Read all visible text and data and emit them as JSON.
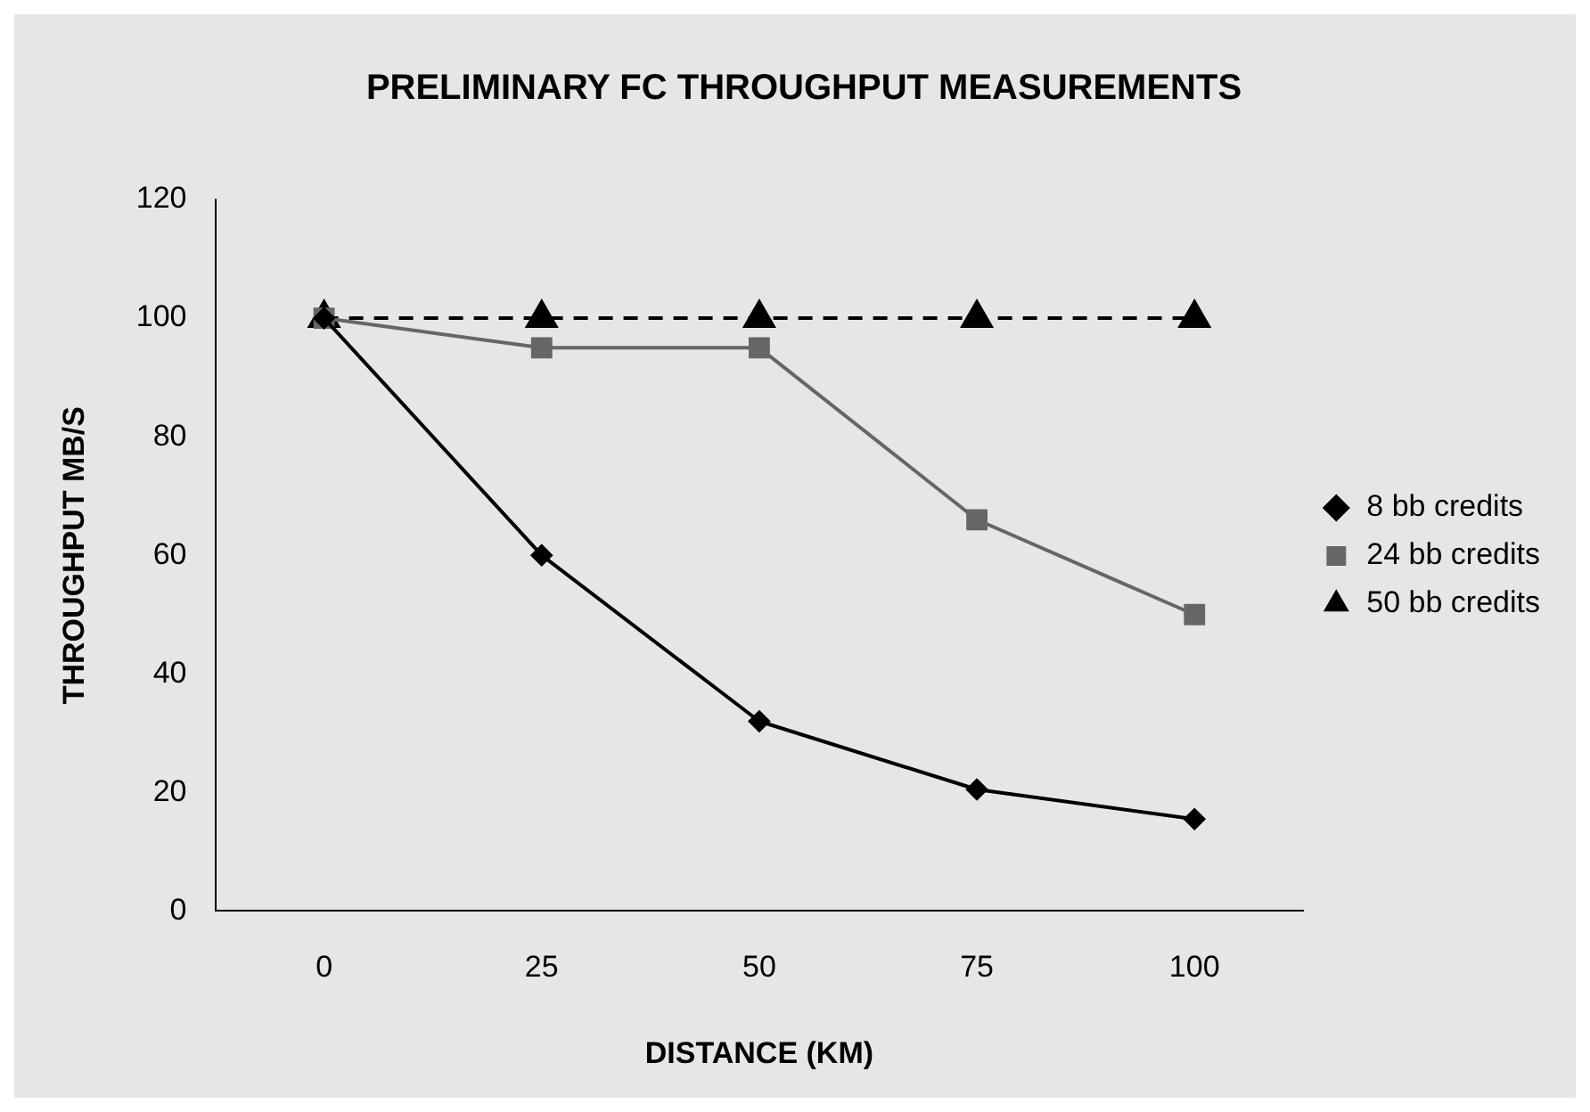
{
  "chart_data": {
    "type": "line",
    "title": "PRELIMINARY FC THROUGHPUT MEASUREMENTS",
    "xlabel": "DISTANCE (KM)",
    "ylabel": "THROUGHPUT MB/S",
    "categories": [
      "0",
      "25",
      "50",
      "75",
      "100"
    ],
    "series": [
      {
        "name": "8 bb credits",
        "color": "#000000",
        "marker": "diamond",
        "line_style": "solid",
        "values": [
          100,
          60,
          32,
          20.5,
          15.5
        ]
      },
      {
        "name": "24 bb credits",
        "color": "#666666",
        "marker": "square",
        "line_style": "solid",
        "values": [
          100,
          95,
          95,
          66,
          50
        ]
      },
      {
        "name": "50 bb credits",
        "color": "#000000",
        "marker": "triangle",
        "line_style": "dashed",
        "values": [
          100,
          100,
          100,
          100,
          100
        ]
      }
    ],
    "ylim": [
      0,
      120
    ],
    "yticks": [
      0,
      20,
      40,
      60,
      80,
      100,
      120
    ],
    "grid": false,
    "legend": "right"
  }
}
